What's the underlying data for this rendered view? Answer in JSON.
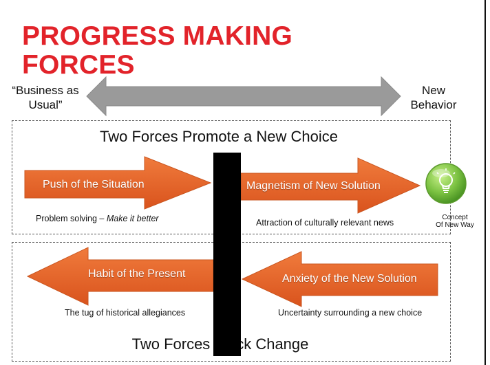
{
  "title": {
    "line1": "PROGRESS MAKING",
    "line2": "FORCES"
  },
  "spectrum": {
    "left_label_line1": "“Business as",
    "left_label_line2": "Usual”",
    "right_label_line1": "New",
    "right_label_line2": "Behavior"
  },
  "promote": {
    "heading": "Two Forces Promote a New Choice",
    "push_label": "Push of the Situation",
    "push_caption_plain": "Problem solving – ",
    "push_caption_italic": "Make it better",
    "pull_label": "Magnetism of New Solution",
    "pull_caption": "Attraction of culturally relevant news",
    "concept_line1": "Concept",
    "concept_line2": "Of New Way"
  },
  "block": {
    "heading": "Two Forces Block Change",
    "habit_label": "Habit of the Present",
    "habit_caption": "The tug of historical allegiances",
    "anxiety_label": "Anxiety of the New Solution",
    "anxiety_caption": "Uncertainty surrounding a new choice"
  },
  "colors": {
    "title_red": "#e2232a",
    "arrow_orange": "#e8622a",
    "spectrum_gray": "#9a9a9a",
    "barrier_black": "#000000",
    "bulb_green": "#7cc242"
  },
  "icons": {
    "concept": "lightbulb-icon"
  }
}
